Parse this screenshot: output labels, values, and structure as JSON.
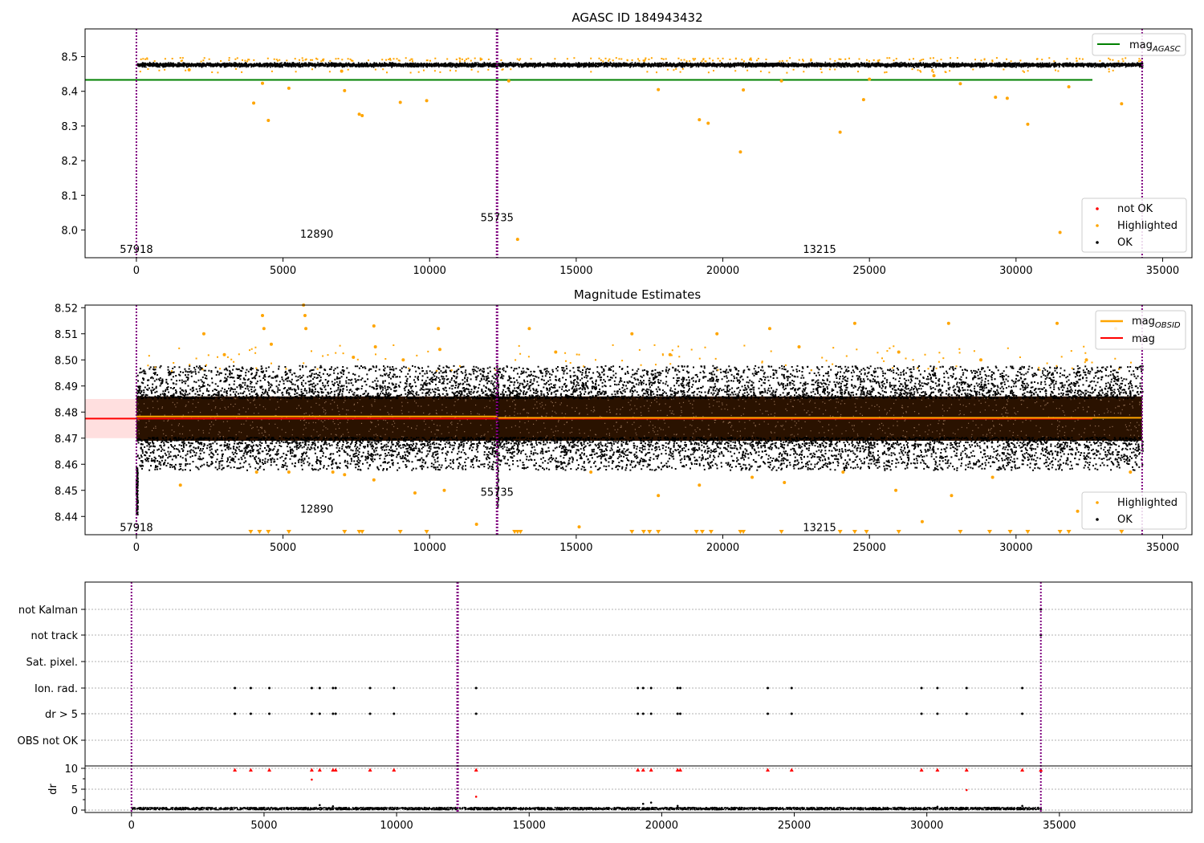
{
  "chart_data": [
    {
      "type": "scatter",
      "title": "AGASC ID 184943432",
      "xlim": [
        -1750,
        36000
      ],
      "ylim": [
        7.92,
        8.58
      ],
      "xticks": [
        0,
        5000,
        10000,
        15000,
        20000,
        25000,
        30000,
        35000
      ],
      "yticks": [
        8.0,
        8.1,
        8.2,
        8.3,
        8.4,
        8.5
      ],
      "ytick_labels": [
        "8.0",
        "8.1",
        "8.2",
        "8.3",
        "8.4",
        "8.5"
      ],
      "obsid_boundaries": [
        0,
        12300,
        34300
      ],
      "obsid_labels": [
        {
          "text": "57918",
          "x": 0,
          "y": 7.945
        },
        {
          "text": "12890",
          "x": 6150,
          "y": 7.99
        },
        {
          "text": "55735",
          "x": 12300,
          "y": 8.037
        },
        {
          "text": "13215",
          "x": 23300,
          "y": 7.945
        }
      ],
      "series": [
        {
          "name": "mag_AGASC",
          "kind": "hline",
          "y": 8.433,
          "x_range": [
            -1750,
            36000
          ],
          "color": "#008000"
        },
        {
          "name": "OK",
          "kind": "band",
          "y_center": 8.478,
          "spread": 0.008,
          "x_range": [
            0,
            34300
          ],
          "color": "#000000"
        },
        {
          "name": "Highlighted",
          "color": "#ffa500",
          "points": [
            [
              4000,
              8.366
            ],
            [
              4300,
              8.423
            ],
            [
              4500,
              8.316
            ],
            [
              5200,
              8.409
            ],
            [
              7100,
              8.402
            ],
            [
              7600,
              8.334
            ],
            [
              7700,
              8.33
            ],
            [
              9000,
              8.368
            ],
            [
              9900,
              8.373
            ],
            [
              13000,
              7.973
            ],
            [
              19200,
              8.318
            ],
            [
              19500,
              8.308
            ],
            [
              20600,
              8.225
            ],
            [
              20700,
              8.404
            ],
            [
              24000,
              8.282
            ],
            [
              24800,
              8.376
            ],
            [
              29300,
              8.383
            ],
            [
              29700,
              8.38
            ],
            [
              30400,
              8.305
            ],
            [
              31800,
              8.413
            ],
            [
              31500,
              7.993
            ],
            [
              33600,
              8.364
            ],
            [
              1800,
              8.462
            ],
            [
              7000,
              8.458
            ],
            [
              12700,
              8.43
            ],
            [
              17800,
              8.405
            ],
            [
              22000,
              8.43
            ],
            [
              25000,
              8.435
            ],
            [
              27200,
              8.445
            ],
            [
              28100,
              8.422
            ]
          ]
        },
        {
          "name": "not OK",
          "color": "#ff0000",
          "points": []
        }
      ],
      "legends": [
        {
          "position": "upper-right",
          "entries": [
            "mag_AGASC"
          ]
        },
        {
          "position": "lower-right",
          "entries": [
            "not OK",
            "Highlighted",
            "OK"
          ]
        }
      ]
    },
    {
      "type": "scatter",
      "title": "Magnitude Estimates",
      "xlim": [
        -1750,
        36000
      ],
      "ylim": [
        8.433,
        8.521
      ],
      "xticks": [
        0,
        5000,
        10000,
        15000,
        20000,
        25000,
        30000,
        35000
      ],
      "yticks": [
        8.44,
        8.45,
        8.46,
        8.47,
        8.48,
        8.49,
        8.5,
        8.51,
        8.52
      ],
      "ytick_labels": [
        "8.44",
        "8.45",
        "8.46",
        "8.47",
        "8.48",
        "8.49",
        "8.50",
        "8.51",
        "8.52"
      ],
      "obsid_boundaries": [
        0,
        12300,
        34300
      ],
      "obsid_labels": [
        {
          "text": "57918",
          "x": 0,
          "y": 8.436
        },
        {
          "text": "12890",
          "x": 6150,
          "y": 8.443
        },
        {
          "text": "55735",
          "x": 12300,
          "y": 8.4495
        },
        {
          "text": "13215",
          "x": 23300,
          "y": 8.436
        }
      ],
      "band": {
        "y_low": 8.47,
        "y_high": 8.485,
        "x_range": [
          -1750,
          36000
        ],
        "color": "#ffdddd"
      },
      "series": [
        {
          "name": "mag",
          "kind": "hline",
          "y": 8.4775,
          "x_range": [
            -1750,
            36000
          ],
          "color": "#ff0000"
        },
        {
          "name": "mag_OBSID",
          "kind": "segments",
          "color": "#ffa500",
          "segments": [
            [
              0,
              12300,
              8.478
            ],
            [
              12300,
              34300,
              8.4775
            ]
          ]
        },
        {
          "name": "OK",
          "kind": "band",
          "y_center": 8.478,
          "spread": 0.008,
          "x_range": [
            0,
            34300
          ],
          "color": "#000000"
        },
        {
          "name": "Highlighted",
          "color": "#ffa500",
          "points": [
            [
              4300,
              8.517
            ],
            [
              4350,
              8.512
            ],
            [
              4600,
              8.506
            ],
            [
              5700,
              8.521
            ],
            [
              5750,
              8.517
            ],
            [
              5780,
              8.512
            ],
            [
              2300,
              8.51
            ],
            [
              8100,
              8.513
            ],
            [
              8150,
              8.505
            ],
            [
              10300,
              8.512
            ],
            [
              10350,
              8.504
            ],
            [
              13400,
              8.512
            ],
            [
              16900,
              8.51
            ],
            [
              19800,
              8.51
            ],
            [
              21600,
              8.512
            ],
            [
              24500,
              8.514
            ],
            [
              27700,
              8.514
            ],
            [
              31400,
              8.514
            ],
            [
              33400,
              8.512
            ],
            [
              9100,
              8.5
            ],
            [
              14300,
              8.503
            ],
            [
              22600,
              8.505
            ],
            [
              26000,
              8.503
            ],
            [
              3000,
              8.502
            ],
            [
              7400,
              8.501
            ],
            [
              18200,
              8.502
            ],
            [
              28800,
              8.5
            ],
            [
              32400,
              8.5
            ],
            [
              6700,
              8.457
            ],
            [
              7100,
              8.456
            ],
            [
              8100,
              8.454
            ],
            [
              9500,
              8.449
            ],
            [
              10500,
              8.45
            ],
            [
              11600,
              8.437
            ],
            [
              15100,
              8.436
            ],
            [
              15500,
              8.457
            ],
            [
              17800,
              8.448
            ],
            [
              19200,
              8.452
            ],
            [
              21000,
              8.455
            ],
            [
              22100,
              8.453
            ],
            [
              25900,
              8.45
            ],
            [
              26800,
              8.438
            ],
            [
              27800,
              8.448
            ],
            [
              29200,
              8.455
            ],
            [
              32100,
              8.442
            ],
            [
              33900,
              8.457
            ],
            [
              1500,
              8.452
            ],
            [
              4100,
              8.457
            ],
            [
              5200,
              8.457
            ],
            [
              24100,
              8.457
            ]
          ]
        },
        {
          "name": "Highlighted (off-scale)",
          "marker": "down-triangle",
          "color": "#ffa500",
          "x": [
            3900,
            4200,
            4500,
            5200,
            7100,
            7600,
            7700,
            9000,
            9900,
            12900,
            13000,
            13100,
            16900,
            17300,
            17500,
            17800,
            19100,
            19300,
            19600,
            20600,
            20700,
            22000,
            24000,
            24500,
            24900,
            26000,
            28100,
            29100,
            29800,
            30400,
            31500,
            31800,
            33600
          ]
        }
      ],
      "legends": [
        {
          "position": "upper-right",
          "entries": [
            "mag_OBSID",
            "mag"
          ]
        },
        {
          "position": "lower-right",
          "entries": [
            "Highlighted",
            "OK"
          ]
        }
      ]
    },
    {
      "type": "scatter",
      "xlim": [
        -1750,
        40000
      ],
      "xticks": [
        0,
        5000,
        10000,
        15000,
        20000,
        25000,
        30000,
        35000
      ],
      "obsid_boundaries": [
        0,
        12300,
        34300
      ],
      "flag_rows": [
        "not Kalman",
        "not track",
        "Sat. pixel.",
        "Ion. rad.",
        "dr > 5",
        "OBS not OK"
      ],
      "flag_points": {
        "not Kalman": [
          34300
        ],
        "not track": [
          34300
        ],
        "Sat. pixel.": [],
        "Ion. rad.": [
          3900,
          4500,
          5200,
          6800,
          7100,
          7600,
          7700,
          9000,
          9900,
          13000,
          19100,
          19300,
          19600,
          20600,
          20700,
          24000,
          24900,
          29800,
          30400,
          31500,
          33600
        ],
        "dr > 5": [
          3900,
          4500,
          5200,
          6800,
          7100,
          7600,
          7700,
          9000,
          9900,
          13000,
          19100,
          19300,
          19600,
          20600,
          20700,
          24000,
          24900,
          29800,
          30400,
          31500,
          33600
        ],
        "OBS not OK": []
      },
      "dr": {
        "ylabel": "dr",
        "ylim": [
          -0.5,
          10.5
        ],
        "yticks": [
          0,
          5,
          10
        ],
        "ytick_labels": [
          "0",
          "5",
          "10"
        ],
        "points_capped": [
          3900,
          4500,
          5200,
          6800,
          7100,
          7600,
          7700,
          9000,
          9900,
          13000,
          19100,
          19300,
          19600,
          20600,
          20700,
          24000,
          24900,
          29800,
          30400,
          31500,
          33600,
          34300
        ],
        "points_large": [
          [
            6800,
            7.3
          ],
          [
            13000,
            3.2
          ],
          [
            31500,
            4.8
          ],
          [
            7100,
            1.2
          ],
          [
            7600,
            0.9
          ],
          [
            19300,
            1.5
          ],
          [
            19600,
            1.8
          ],
          [
            20600,
            1.0
          ],
          [
            30400,
            0.8
          ],
          [
            33600,
            1.0
          ]
        ]
      }
    }
  ]
}
